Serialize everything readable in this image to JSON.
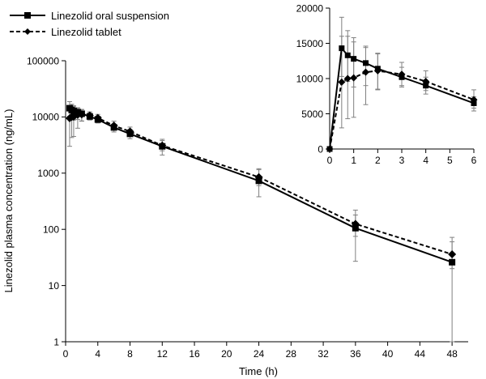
{
  "chart_data": [
    {
      "type": "line",
      "xlabel": "Time (h)",
      "ylabel": "Linezolid plasma concentration (ng/mL)",
      "xlim": [
        0,
        50
      ],
      "ylim": [
        1,
        100000
      ],
      "yscale": "log",
      "xticks": [
        0,
        4,
        8,
        12,
        16,
        20,
        24,
        28,
        32,
        36,
        40,
        44,
        48
      ],
      "yticks": [
        1,
        10,
        100,
        1000,
        10000,
        100000
      ],
      "ytick_labels": [
        "1",
        "10",
        "100",
        "1000",
        "10000",
        "100000"
      ],
      "grid": false,
      "legend": "top-left",
      "series": [
        {
          "name": "Linezolid oral suspension",
          "line": "solid",
          "marker": "square",
          "x": [
            0.5,
            0.75,
            1,
            1.5,
            2,
            3,
            4,
            6,
            8,
            12,
            24,
            36,
            48
          ],
          "y": [
            14300,
            13300,
            12800,
            12200,
            11400,
            10200,
            9000,
            6500,
            5000,
            3000,
            730,
            105,
            26
          ],
          "err_low": [
            10300,
            9600,
            8800,
            9000,
            8400,
            8800,
            7800,
            5400,
            4100,
            2100,
            380,
            27,
            1
          ],
          "err_high": [
            18700,
            16000,
            15200,
            14600,
            13600,
            11600,
            10200,
            7400,
            6000,
            4000,
            1200,
            220,
            60
          ]
        },
        {
          "name": "Linezolid tablet",
          "line": "dashed",
          "marker": "diamond",
          "x": [
            0.5,
            0.75,
            1,
            1.5,
            2,
            3,
            4,
            6,
            8,
            12,
            24,
            36,
            48
          ],
          "y": [
            9500,
            10000,
            10100,
            10900,
            11100,
            10600,
            9600,
            7000,
            5500,
            3100,
            850,
            125,
            36
          ],
          "err_low": [
            3000,
            4300,
            4500,
            6300,
            8500,
            9000,
            8300,
            5800,
            4500,
            2500,
            600,
            75,
            20
          ],
          "err_high": [
            16000,
            16800,
            15800,
            14400,
            13500,
            12300,
            11100,
            8400,
            6600,
            3800,
            1150,
            180,
            72
          ]
        }
      ]
    },
    {
      "type": "line",
      "inset": true,
      "xlim": [
        0,
        6
      ],
      "ylim": [
        0,
        20000
      ],
      "xticks": [
        0,
        1,
        2,
        3,
        4,
        5,
        6
      ],
      "yticks": [
        0,
        5000,
        10000,
        15000,
        20000
      ],
      "grid": false,
      "series": [
        {
          "name": "Linezolid oral suspension",
          "line": "solid",
          "marker": "square",
          "x": [
            0,
            0.5,
            0.75,
            1,
            1.5,
            2,
            3,
            4,
            6
          ],
          "y": [
            0,
            14300,
            13300,
            12800,
            12200,
            11400,
            10200,
            9000,
            6500
          ],
          "err_low": [
            0,
            10300,
            9600,
            8800,
            9000,
            8400,
            8800,
            7800,
            5400
          ],
          "err_high": [
            0,
            18700,
            16000,
            15200,
            14600,
            13600,
            11600,
            10200,
            7400
          ]
        },
        {
          "name": "Linezolid tablet",
          "line": "dashed",
          "marker": "diamond",
          "x": [
            0,
            0.5,
            0.75,
            1,
            1.5,
            2,
            3,
            4,
            6
          ],
          "y": [
            0,
            9500,
            10000,
            10100,
            10900,
            11100,
            10600,
            9600,
            7000
          ],
          "err_low": [
            0,
            3000,
            4300,
            4500,
            6300,
            8500,
            9000,
            8300,
            5800
          ],
          "err_high": [
            0,
            16000,
            16800,
            15800,
            14400,
            13500,
            12300,
            11100,
            8400
          ]
        }
      ]
    }
  ]
}
